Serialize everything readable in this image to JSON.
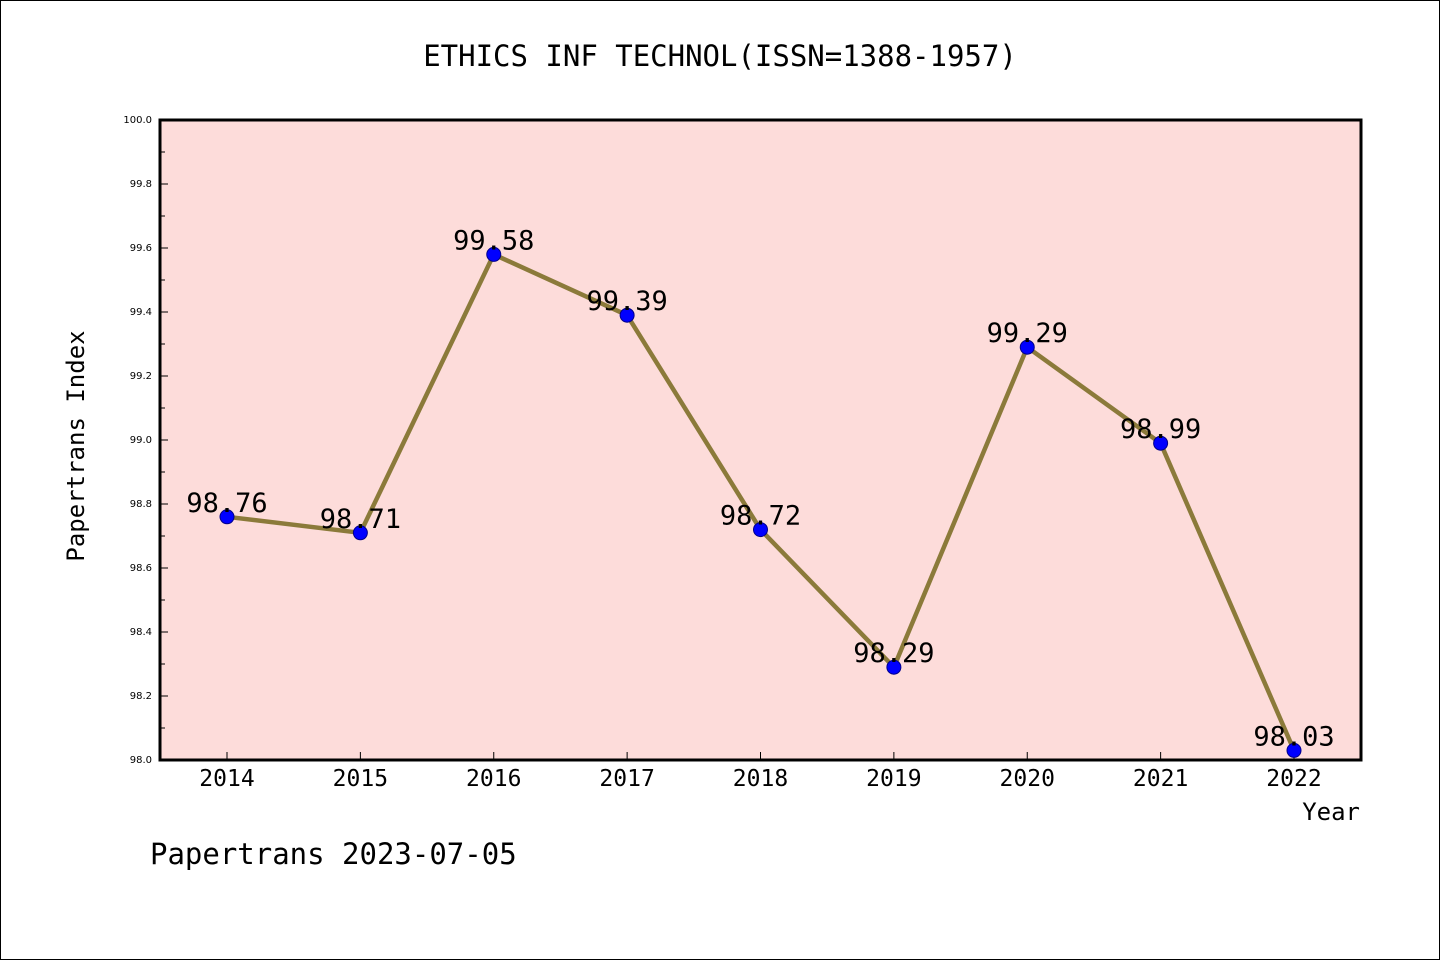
{
  "chart_data": {
    "type": "line",
    "title": "ETHICS INF TECHNOL(ISSN=1388-1957)",
    "xlabel": "Year",
    "ylabel": "Papertrans Index",
    "x": [
      "2014",
      "2015",
      "2016",
      "2017",
      "2018",
      "2019",
      "2020",
      "2021",
      "2022"
    ],
    "series": [
      {
        "values": [
          98.76,
          98.71,
          99.58,
          99.39,
          98.72,
          98.29,
          99.29,
          98.99,
          98.03
        ],
        "labels": [
          "98.76",
          "98.71",
          "99.58",
          "99.39",
          "98.72",
          "98.29",
          "99.29",
          "98.99",
          "98.03"
        ]
      }
    ],
    "ylim": [
      98.0,
      100.0
    ],
    "yticks": [
      "98.0",
      "98.2",
      "98.4",
      "98.6",
      "98.8",
      "99.0",
      "99.2",
      "99.4",
      "99.6",
      "99.8",
      "100.0"
    ],
    "grid": false,
    "colors": {
      "plot_background": "#fddcda",
      "line": "#8b7a3a",
      "marker": "#0000ff"
    }
  },
  "footer": "Papertrans 2023-07-05"
}
